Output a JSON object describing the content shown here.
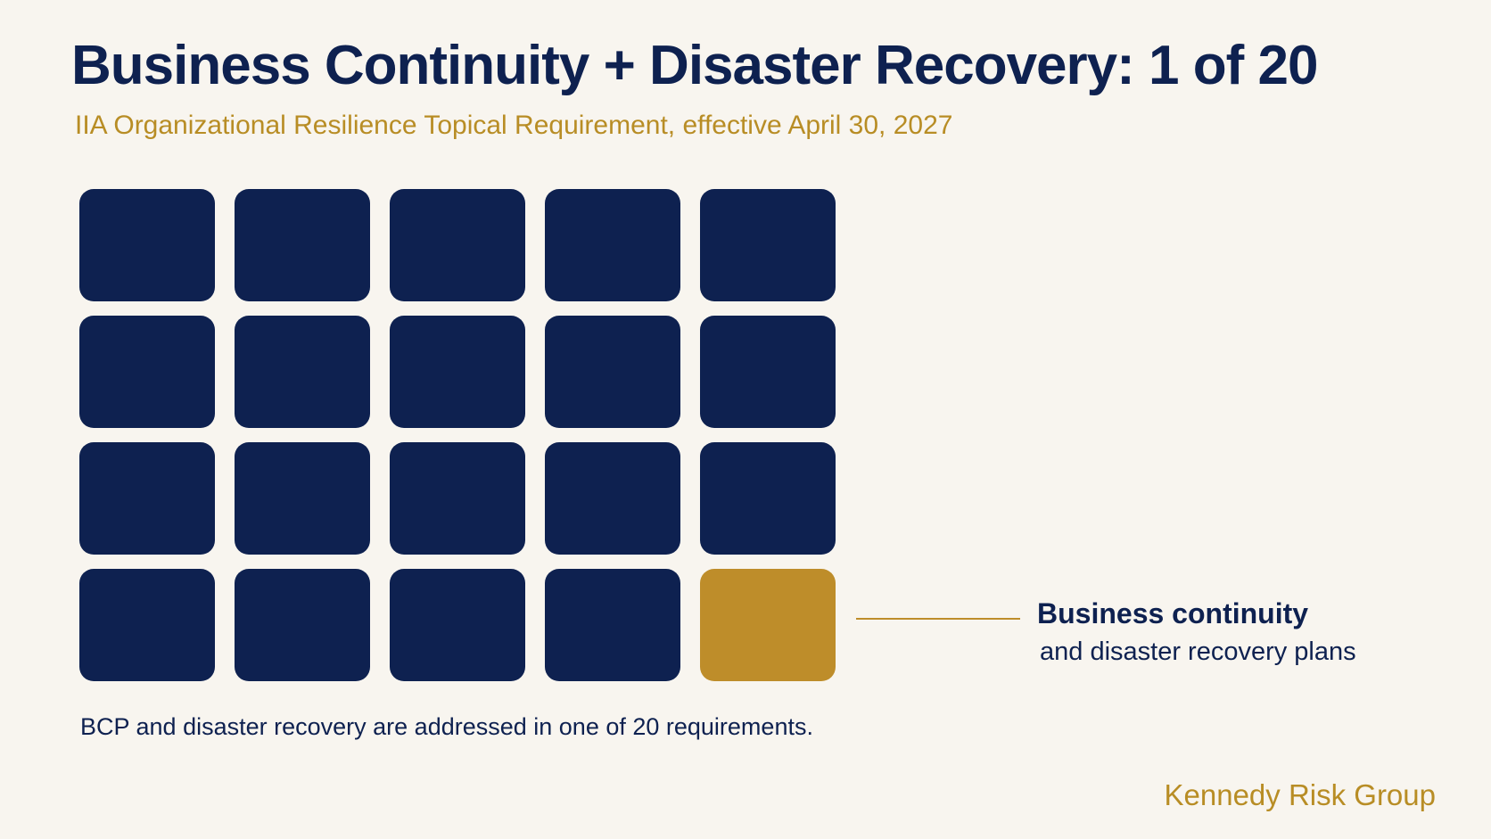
{
  "title": "Business Continuity + Disaster Recovery: 1 of 20",
  "subtitle": "IIA Organizational Resilience Topical Requirement, effective April 30, 2027",
  "colors": {
    "background": "#f8f5ef",
    "navy": "#0e2150",
    "gold": "#be8d2a"
  },
  "chart_data": {
    "type": "waffle",
    "rows": 4,
    "columns": 5,
    "total": 20,
    "highlighted": 1,
    "highlighted_index": 19,
    "callout_title": "Business continuity",
    "callout_subtitle": "and disaster recovery plans",
    "note": "BCP and disaster recovery are addressed in one of 20 requirements."
  },
  "footer": {
    "brand": "Kennedy Risk Group"
  }
}
